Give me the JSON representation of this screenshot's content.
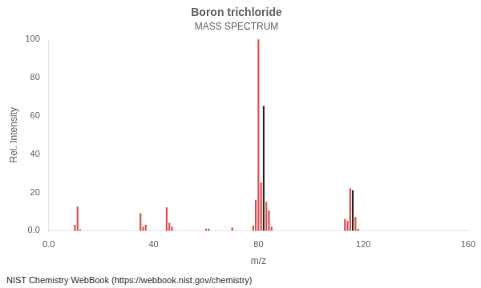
{
  "chart_data": {
    "type": "bar",
    "title": "Boron trichloride",
    "subtitle": "MASS SPECTRUM",
    "x_label": "m/z",
    "y_label": "Rel. Intensity",
    "annotations": [
      "NIST Chemistry WebBook (https://webbook.nist.gov/chemistry)"
    ],
    "xlim": [
      0.0,
      160
    ],
    "ylim": [
      0.0,
      100
    ],
    "xticks": [
      {
        "value": 0.0,
        "label": "0.0"
      },
      40,
      80,
      120,
      160
    ],
    "yticks": [
      {
        "value": 0.0,
        "label": "0.0"
      },
      20,
      40,
      60,
      80,
      100
    ],
    "grid": false,
    "series": [
      {
        "color": "#e05050",
        "x": [
          10,
          11,
          12,
          35,
          36,
          37,
          45,
          46,
          47,
          60,
          61,
          70,
          78,
          79,
          80,
          81,
          83,
          84,
          85,
          113,
          114,
          115,
          117,
          118
        ],
        "values": [
          3.0,
          12.5,
          0.5,
          9.0,
          2.0,
          3.0,
          12.0,
          4.0,
          2.0,
          1.0,
          1.0,
          1.5,
          2.5,
          16.0,
          100.0,
          25.0,
          15.0,
          10.5,
          2.0,
          6.0,
          5.0,
          22.0,
          7.0,
          1.0
        ]
      },
      {
        "color": "#303030",
        "x": [
          82,
          116
        ],
        "values": [
          65.0,
          21.0
        ]
      }
    ]
  }
}
